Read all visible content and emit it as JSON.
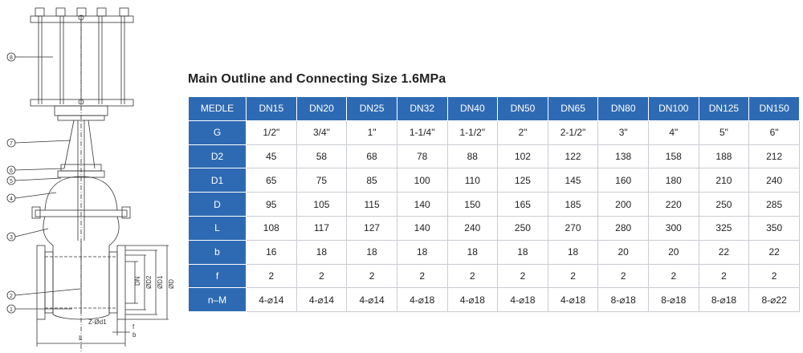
{
  "colors": {
    "header_blue": "#2e6ab4",
    "border": "#c9ccd2",
    "text": "#222222"
  },
  "title": "Main Outline and Connecting Size 1.6MPa",
  "drawing": {
    "callouts": [
      "1",
      "2",
      "3",
      "4",
      "5",
      "6",
      "7",
      "8"
    ],
    "dims": {
      "dn": "DN",
      "d2": "ØD2",
      "d1": "ØD1",
      "d": "ØD",
      "l": "L",
      "z": "Z-Ød1",
      "f": "f",
      "b": "b"
    }
  },
  "table": {
    "corner": "MEDLE",
    "sizes": [
      "DN15",
      "DN20",
      "DN25",
      "DN32",
      "DN40",
      "DN50",
      "DN65",
      "DN80",
      "DN100",
      "DN125",
      "DN150"
    ],
    "rows": [
      {
        "label": "G",
        "values": [
          "1/2\"",
          "3/4\"",
          "1\"",
          "1-1/4\"",
          "1-1/2\"",
          "2\"",
          "2-1/2\"",
          "3\"",
          "4\"",
          "5\"",
          "6\""
        ]
      },
      {
        "label": "D2",
        "values": [
          "45",
          "58",
          "68",
          "78",
          "88",
          "102",
          "122",
          "138",
          "158",
          "188",
          "212"
        ]
      },
      {
        "label": "D1",
        "values": [
          "65",
          "75",
          "85",
          "100",
          "110",
          "125",
          "145",
          "160",
          "180",
          "210",
          "240"
        ]
      },
      {
        "label": "D",
        "values": [
          "95",
          "105",
          "115",
          "140",
          "150",
          "165",
          "185",
          "200",
          "220",
          "250",
          "285"
        ]
      },
      {
        "label": "L",
        "values": [
          "108",
          "117",
          "127",
          "140",
          "240",
          "250",
          "270",
          "280",
          "300",
          "325",
          "350"
        ]
      },
      {
        "label": "b",
        "values": [
          "16",
          "18",
          "18",
          "18",
          "18",
          "18",
          "18",
          "20",
          "20",
          "22",
          "22"
        ]
      },
      {
        "label": "f",
        "values": [
          "2",
          "2",
          "2",
          "2",
          "2",
          "2",
          "2",
          "2",
          "2",
          "2",
          "2"
        ]
      },
      {
        "label": "n–M",
        "values": [
          "4-⌀14",
          "4-⌀14",
          "4-⌀14",
          "4-⌀18",
          "4-⌀18",
          "4-⌀18",
          "4-⌀18",
          "8-⌀18",
          "8-⌀18",
          "8-⌀18",
          "8-⌀22"
        ]
      }
    ]
  }
}
